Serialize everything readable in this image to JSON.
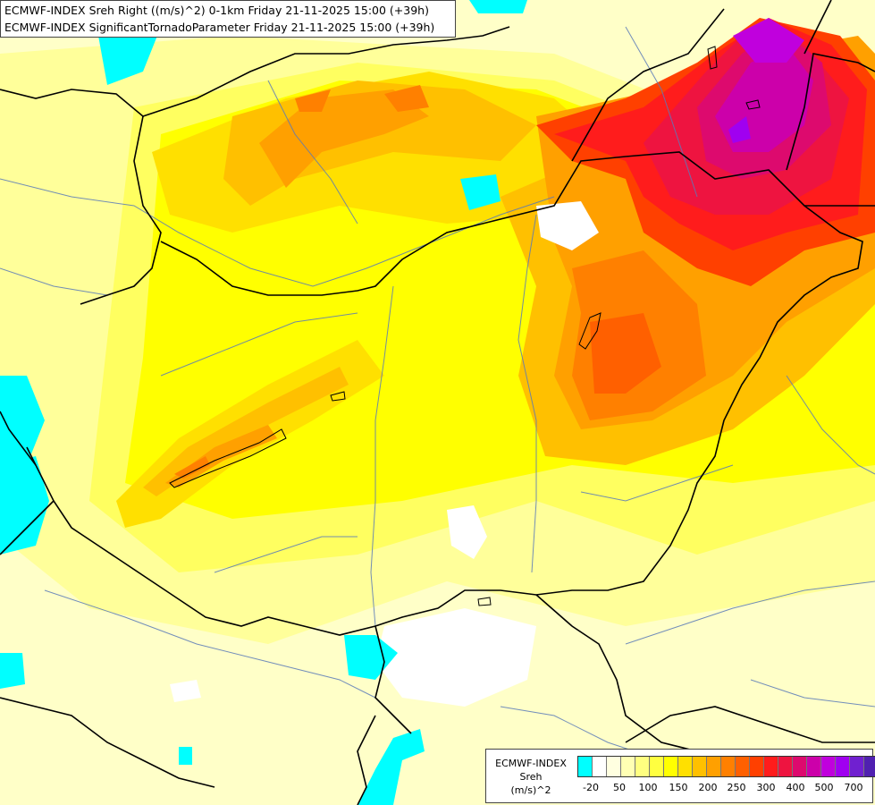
{
  "header": {
    "line1": "ECMWF-INDEX Sreh Right ((m/s)^2) 0-1km Friday 21-11-2025 15:00 (+39h)",
    "line2": "ECMWF-INDEX SignificantTornadoParameter Friday 21-11-2025 15:00 (+39h)"
  },
  "legend": {
    "title": "ECMWF-INDEX",
    "variable": "Sreh",
    "unit": "(m/s)^2",
    "ticks": [
      "-20",
      "50",
      "100",
      "150",
      "200",
      "250",
      "300",
      "400",
      "500",
      "700"
    ],
    "colors": [
      "#00ffff",
      "#ffffff",
      "#ffffe0",
      "#ffffb4",
      "#ffff80",
      "#ffff40",
      "#ffff00",
      "#ffe000",
      "#ffc000",
      "#ffa000",
      "#ff8000",
      "#ff6000",
      "#ff4000",
      "#ff1c1c",
      "#ee1440",
      "#dd0a6e",
      "#cc00aa",
      "#c000dd",
      "#a000f0",
      "#7020d0",
      "#5020b0",
      "#2a1a90",
      "#000080"
    ]
  }
}
